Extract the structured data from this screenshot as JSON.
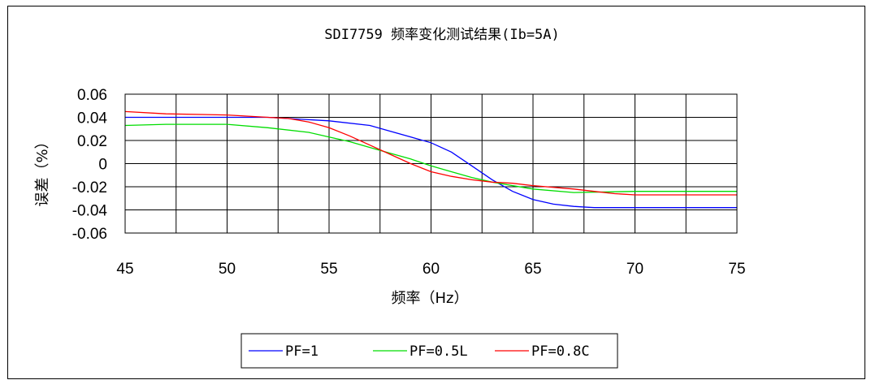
{
  "chart_data": {
    "type": "line",
    "title": "SDI7759 频率变化测试结果(Ib=5A)",
    "xlabel": "频率（Hz）",
    "ylabel": "误差（%）",
    "xlim": [
      45,
      75
    ],
    "ylim": [
      -0.06,
      0.06
    ],
    "x_ticks": [
      "45",
      "50",
      "55",
      "60",
      "65",
      "70",
      "75"
    ],
    "y_ticks": [
      "0.06",
      "0.04",
      "0.02",
      "0",
      "-0.02",
      "-0.04",
      "-0.06"
    ],
    "grid": true,
    "legend_position": "bottom",
    "series": [
      {
        "name": "PF=1",
        "color": "#0000ff",
        "x": [
          45,
          47,
          50,
          52,
          55,
          57,
          58,
          60,
          61,
          62,
          63,
          64,
          65,
          66,
          67,
          68,
          70,
          72,
          75
        ],
        "y": [
          0.04,
          0.04,
          0.04,
          0.04,
          0.037,
          0.033,
          0.028,
          0.018,
          0.01,
          -0.002,
          -0.014,
          -0.024,
          -0.031,
          -0.035,
          -0.037,
          -0.038,
          -0.038,
          -0.038,
          -0.038
        ]
      },
      {
        "name": "PF=0.5L",
        "color": "#00dd00",
        "x": [
          45,
          47,
          50,
          52,
          54,
          55,
          56,
          57,
          58,
          59,
          60,
          61,
          62,
          63,
          64,
          65,
          67,
          70,
          75
        ],
        "y": [
          0.033,
          0.034,
          0.034,
          0.031,
          0.027,
          0.023,
          0.019,
          0.014,
          0.009,
          0.004,
          -0.002,
          -0.007,
          -0.012,
          -0.016,
          -0.019,
          -0.022,
          -0.025,
          -0.024,
          -0.024
        ]
      },
      {
        "name": "PF=0.8C",
        "color": "#ff0000",
        "x": [
          45,
          47,
          50,
          52,
          53,
          54,
          55,
          56,
          57,
          58,
          59,
          60,
          61,
          62,
          63,
          64,
          65,
          67,
          68,
          69,
          70,
          75
        ],
        "y": [
          0.045,
          0.043,
          0.042,
          0.04,
          0.039,
          0.036,
          0.031,
          0.024,
          0.016,
          0.008,
          0.0,
          -0.007,
          -0.011,
          -0.014,
          -0.016,
          -0.017,
          -0.019,
          -0.022,
          -0.024,
          -0.026,
          -0.027,
          -0.027
        ]
      }
    ]
  }
}
